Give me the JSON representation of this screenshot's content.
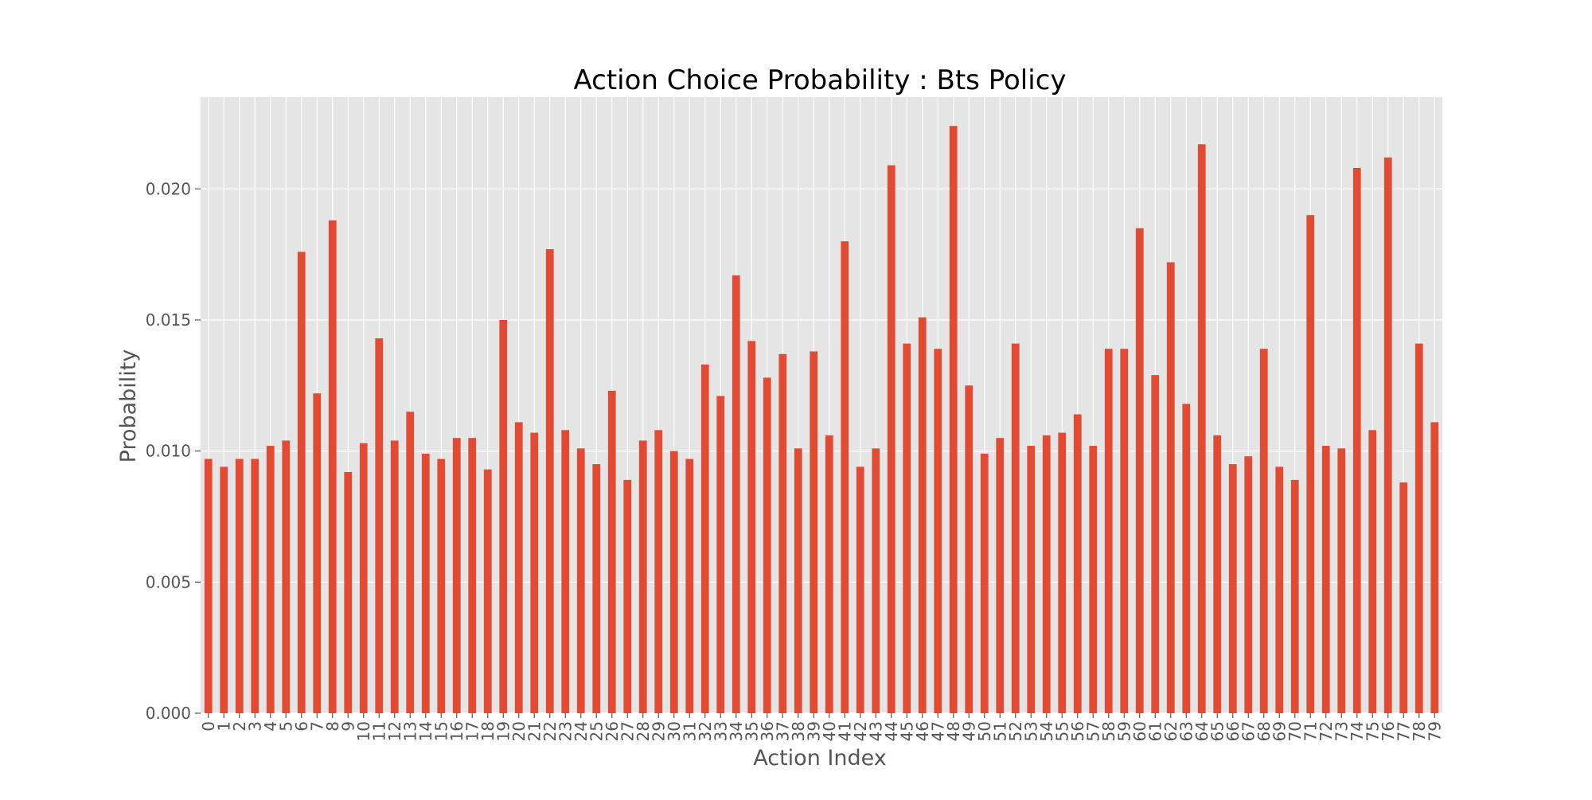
{
  "chart_data": {
    "type": "bar",
    "title": "Action Choice Probability : Bts Policy",
    "xlabel": "Action Index",
    "ylabel": "Probability",
    "ylim": [
      0,
      0.0235
    ],
    "yticks": [
      "0.000",
      "0.005",
      "0.010",
      "0.015",
      "0.020"
    ],
    "grid": true,
    "legend": "none",
    "colors": {
      "bar": "#E24A33",
      "plot_bg": "#E5E5E5",
      "grid": "#FFFFFF",
      "text": "#555555"
    },
    "categories": [
      "0",
      "1",
      "2",
      "3",
      "4",
      "5",
      "6",
      "7",
      "8",
      "9",
      "10",
      "11",
      "12",
      "13",
      "14",
      "15",
      "16",
      "17",
      "18",
      "19",
      "20",
      "21",
      "22",
      "23",
      "24",
      "25",
      "26",
      "27",
      "28",
      "29",
      "30",
      "31",
      "32",
      "33",
      "34",
      "35",
      "36",
      "37",
      "38",
      "39",
      "40",
      "41",
      "42",
      "43",
      "44",
      "45",
      "46",
      "47",
      "48",
      "49",
      "50",
      "51",
      "52",
      "53",
      "54",
      "55",
      "56",
      "57",
      "58",
      "59",
      "60",
      "61",
      "62",
      "63",
      "64",
      "65",
      "66",
      "67",
      "68",
      "69",
      "70",
      "71",
      "72",
      "73",
      "74",
      "75",
      "76",
      "77",
      "78",
      "79"
    ],
    "values": [
      0.0097,
      0.0094,
      0.0097,
      0.0097,
      0.0102,
      0.0104,
      0.0176,
      0.0122,
      0.0188,
      0.0092,
      0.0103,
      0.0143,
      0.0104,
      0.0115,
      0.0099,
      0.0097,
      0.0105,
      0.0105,
      0.0093,
      0.015,
      0.0111,
      0.0107,
      0.0177,
      0.0108,
      0.0101,
      0.0095,
      0.0123,
      0.0089,
      0.0104,
      0.0108,
      0.01,
      0.0097,
      0.0133,
      0.0121,
      0.0167,
      0.0142,
      0.0128,
      0.0137,
      0.0101,
      0.0138,
      0.0106,
      0.018,
      0.0094,
      0.0101,
      0.0209,
      0.0141,
      0.0151,
      0.0139,
      0.0224,
      0.0125,
      0.0099,
      0.0105,
      0.0141,
      0.0102,
      0.0106,
      0.0107,
      0.0114,
      0.0102,
      0.0139,
      0.0139,
      0.0185,
      0.0129,
      0.0172,
      0.0118,
      0.0217,
      0.0106,
      0.0095,
      0.0098,
      0.0139,
      0.0094,
      0.0089,
      0.019,
      0.0102,
      0.0101,
      0.0208,
      0.0108,
      0.0212,
      0.0088,
      0.0141,
      0.0111
    ]
  }
}
